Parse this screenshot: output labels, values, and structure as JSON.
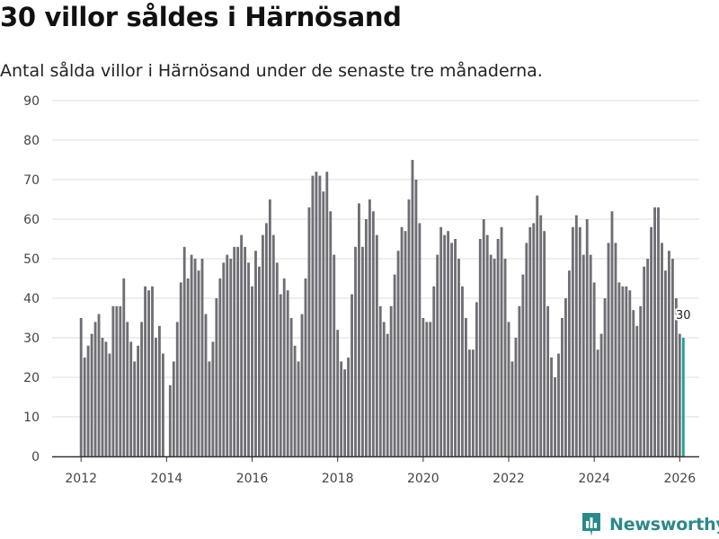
{
  "headline": "30 villor såldes i Härnösand",
  "subtitle": "Antal sålda villor i Härnösand under de senaste tre månaderna.",
  "brand": {
    "name": "Newsworthy",
    "icon": "newsworthy-logo-icon",
    "color": "#2a8a8a"
  },
  "colors": {
    "bar": "#6f6e74",
    "highlight": "#1f9e96",
    "grid": "#dddddd",
    "axis": "#333333"
  },
  "chart_data": {
    "type": "bar",
    "title": "30 villor såldes i Härnösand",
    "xlabel": "",
    "ylabel": "",
    "ylim": [
      0,
      90
    ],
    "yticks": [
      0,
      10,
      20,
      30,
      40,
      50,
      60,
      70,
      80,
      90
    ],
    "xticks": [
      2012,
      2014,
      2016,
      2018,
      2020,
      2022,
      2024,
      2026
    ],
    "start": {
      "year": 2012,
      "month": 1
    },
    "grid": true,
    "highlight_label": "30",
    "values": [
      35,
      25,
      28,
      31,
      34,
      36,
      30,
      29,
      26,
      38,
      38,
      38,
      45,
      34,
      29,
      24,
      28,
      34,
      43,
      42,
      43,
      30,
      33,
      26,
      0,
      18,
      24,
      34,
      44,
      53,
      45,
      51,
      50,
      47,
      50,
      36,
      24,
      29,
      40,
      45,
      49,
      51,
      50,
      53,
      53,
      56,
      53,
      49,
      43,
      52,
      48,
      56,
      59,
      65,
      56,
      49,
      41,
      45,
      42,
      35,
      28,
      24,
      36,
      45,
      63,
      71,
      72,
      71,
      67,
      72,
      62,
      51,
      32,
      24,
      22,
      25,
      41,
      53,
      64,
      53,
      60,
      65,
      62,
      56,
      38,
      34,
      31,
      38,
      46,
      52,
      58,
      57,
      65,
      75,
      70,
      59,
      35,
      34,
      34,
      43,
      51,
      58,
      56,
      57,
      54,
      55,
      50,
      43,
      35,
      27,
      27,
      39,
      55,
      60,
      56,
      51,
      50,
      55,
      58,
      50,
      34,
      24,
      30,
      38,
      46,
      54,
      58,
      59,
      66,
      61,
      57,
      38,
      25,
      20,
      26,
      35,
      40,
      47,
      58,
      61,
      58,
      51,
      60,
      51,
      44,
      27,
      31,
      40,
      54,
      62,
      54,
      44,
      43,
      43,
      42,
      37,
      33,
      38,
      48,
      50,
      58,
      63,
      63,
      54,
      47,
      52,
      50,
      40,
      31,
      30
    ]
  }
}
